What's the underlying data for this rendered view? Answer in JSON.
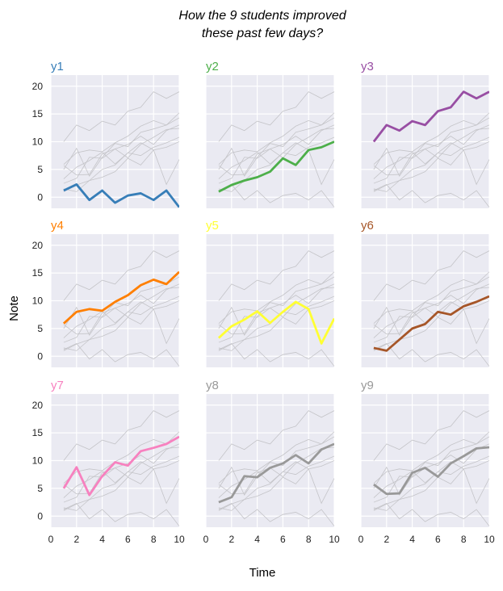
{
  "chart_data": {
    "type": "line",
    "title": [
      "How the 9 students improved",
      "these past few days?"
    ],
    "xlabel": "Time",
    "ylabel": "Note",
    "xlim": [
      0,
      10
    ],
    "ylim": [
      -2,
      22
    ],
    "xticks": [
      0,
      2,
      4,
      6,
      8,
      10
    ],
    "yticks": [
      0,
      5,
      10,
      15,
      20
    ],
    "grid": true,
    "x": [
      1,
      2,
      3,
      4,
      5,
      6,
      7,
      8,
      9,
      10
    ],
    "series": [
      {
        "name": "y1",
        "color": "#377eb8",
        "values": [
          1.2,
          2.3,
          -0.5,
          1.2,
          -1.0,
          0.3,
          0.7,
          -0.5,
          1.2,
          -1.8
        ]
      },
      {
        "name": "y2",
        "color": "#4daf4a",
        "values": [
          1.0,
          2.2,
          3.0,
          3.6,
          4.6,
          7.0,
          5.8,
          8.5,
          9.0,
          10.0
        ]
      },
      {
        "name": "y3",
        "color": "#984ea3",
        "values": [
          10.0,
          13.0,
          12.0,
          13.7,
          13.0,
          15.5,
          16.2,
          19.0,
          17.8,
          19.0
        ]
      },
      {
        "name": "y4",
        "color": "#ff7f00",
        "values": [
          5.9,
          8.0,
          8.5,
          8.2,
          9.8,
          11.0,
          12.8,
          13.8,
          13.0,
          15.2
        ]
      },
      {
        "name": "y5",
        "color": "#ffff33",
        "values": [
          3.3,
          5.4,
          6.6,
          8.1,
          6.0,
          8.0,
          9.8,
          8.5,
          2.3,
          6.8
        ]
      },
      {
        "name": "y6",
        "color": "#a65628",
        "values": [
          1.5,
          1.0,
          3.0,
          5.0,
          5.8,
          8.0,
          7.5,
          9.0,
          9.8,
          10.8
        ]
      },
      {
        "name": "y7",
        "color": "#f781bf",
        "values": [
          5.0,
          8.8,
          3.8,
          7.2,
          9.7,
          9.1,
          11.7,
          12.3,
          13.0,
          14.3
        ]
      },
      {
        "name": "y8",
        "color": "#999999",
        "values": [
          2.5,
          3.4,
          7.2,
          7.0,
          8.7,
          9.5,
          11.0,
          9.5,
          12.0,
          13.0
        ]
      },
      {
        "name": "y9",
        "color": "#999999",
        "values": [
          5.7,
          4.0,
          4.1,
          7.8,
          8.7,
          7.1,
          9.5,
          10.8,
          12.2,
          12.4
        ]
      }
    ]
  }
}
